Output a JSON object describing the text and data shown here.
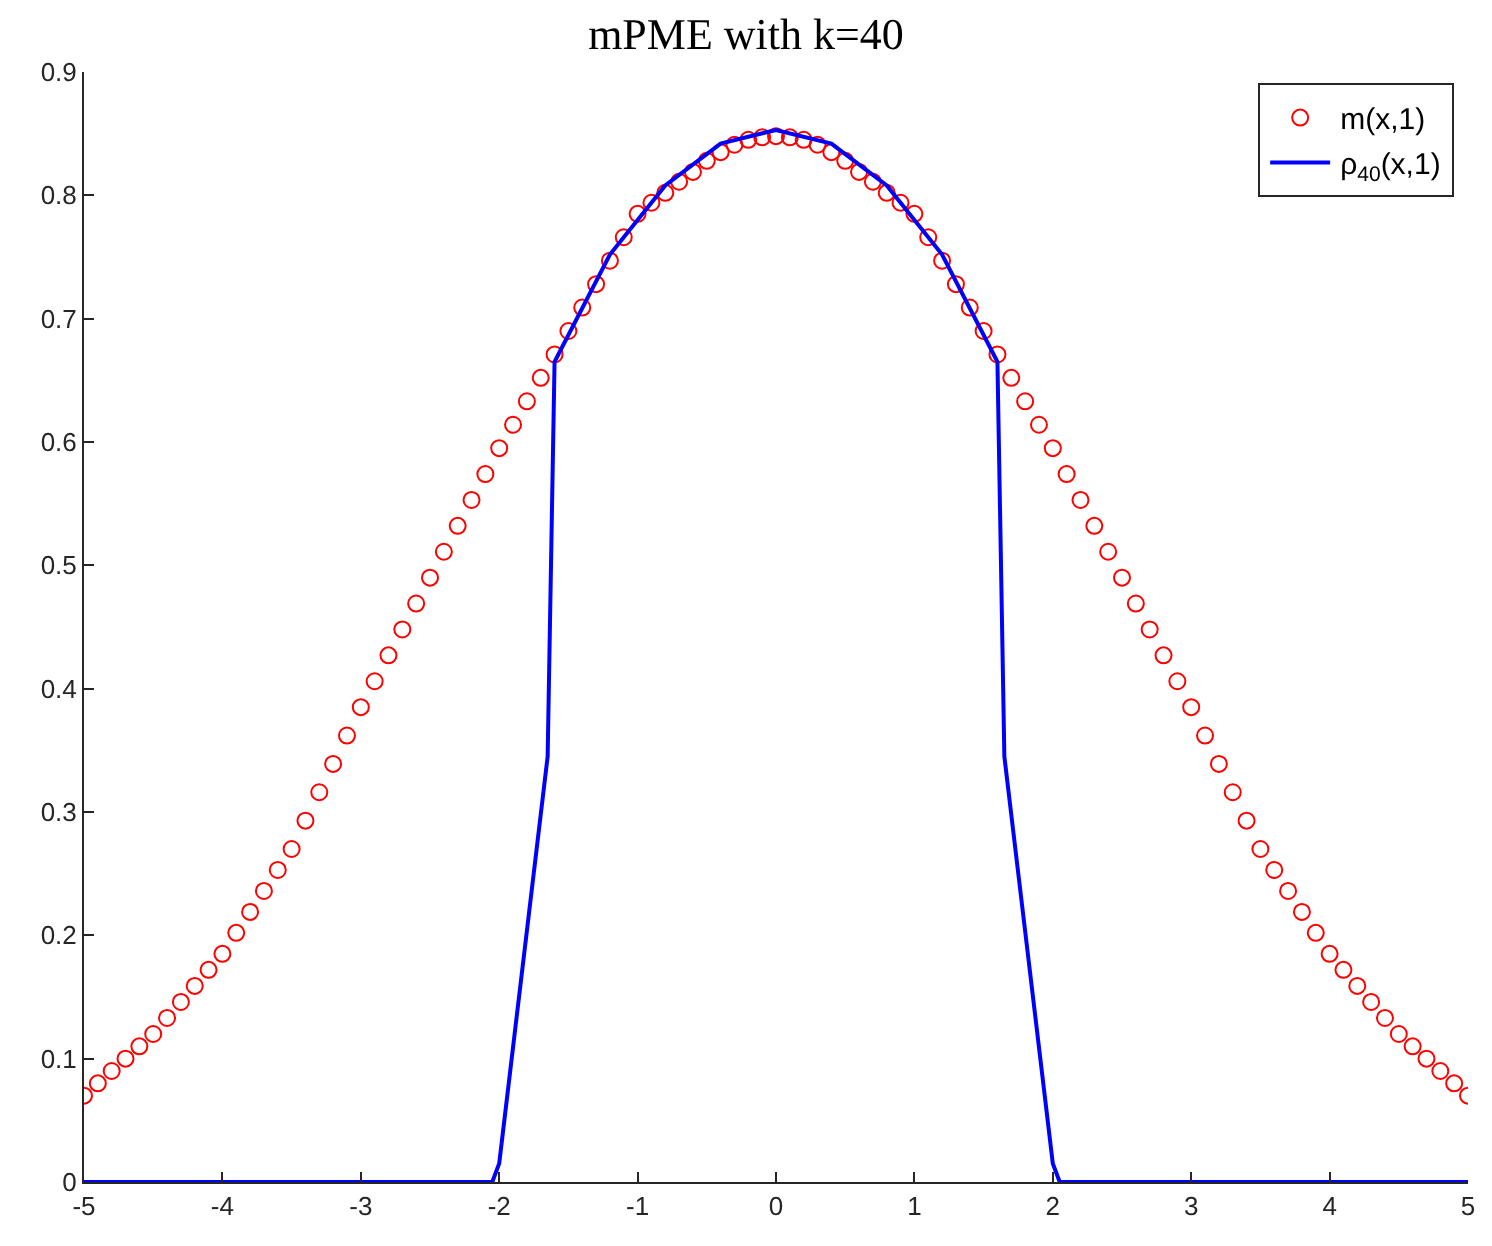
{
  "chart_data": {
    "type": "line",
    "title": "mPME with k=40",
    "xlim": [
      -5,
      5
    ],
    "xticks": [
      -5,
      -4,
      -3,
      -2,
      -1,
      0,
      1,
      2,
      3,
      4,
      5
    ],
    "ylim": [
      0,
      0.9
    ],
    "yticks": [
      0,
      0.1,
      0.2,
      0.3,
      0.4,
      0.5,
      0.6,
      0.7,
      0.8,
      0.9
    ],
    "legend": "top right",
    "series": [
      {
        "name": "m(x,1)",
        "type": "scatter",
        "marker": "circle",
        "color": "#ff0000",
        "x": [
          -5.0,
          -4.9,
          -4.8,
          -4.7,
          -4.6,
          -4.5,
          -4.4,
          -4.3,
          -4.2,
          -4.1,
          -4.0,
          -3.9,
          -3.8,
          -3.7,
          -3.6,
          -3.5,
          -3.4,
          -3.3,
          -3.2,
          -3.1,
          -3.0,
          -2.9,
          -2.8,
          -2.7,
          -2.6,
          -2.5,
          -2.4,
          -2.3,
          -2.2,
          -2.1,
          -2.0,
          -1.9,
          -1.8,
          -1.7,
          -1.6,
          -1.5,
          -1.4,
          -1.3,
          -1.2,
          -1.1,
          -1.0,
          -0.9,
          -0.8,
          -0.7,
          -0.6,
          -0.5,
          -0.4,
          -0.3,
          -0.2,
          -0.1,
          0.0,
          0.1,
          0.2,
          0.3,
          0.4,
          0.5,
          0.6,
          0.7,
          0.8,
          0.9,
          1.0,
          1.1,
          1.2,
          1.3,
          1.4,
          1.5,
          1.6,
          1.7,
          1.8,
          1.9,
          2.0,
          2.1,
          2.2,
          2.3,
          2.4,
          2.5,
          2.6,
          2.7,
          2.8,
          2.9,
          3.0,
          3.1,
          3.2,
          3.3,
          3.4,
          3.5,
          3.6,
          3.7,
          3.8,
          3.9,
          4.0,
          4.1,
          4.2,
          4.3,
          4.4,
          4.5,
          4.6,
          4.7,
          4.8,
          4.9,
          5.0
        ],
        "values": [
          0.07,
          0.08,
          0.09,
          0.1,
          0.11,
          0.12,
          0.133,
          0.146,
          0.159,
          0.172,
          0.185,
          0.202,
          0.219,
          0.236,
          0.253,
          0.27,
          0.293,
          0.316,
          0.339,
          0.362,
          0.385,
          0.406,
          0.427,
          0.448,
          0.469,
          0.49,
          0.511,
          0.532,
          0.553,
          0.574,
          0.595,
          0.614,
          0.633,
          0.652,
          0.671,
          0.69,
          0.709,
          0.728,
          0.747,
          0.766,
          0.785,
          0.794,
          0.802,
          0.811,
          0.819,
          0.828,
          0.835,
          0.841,
          0.845,
          0.847,
          0.848,
          0.847,
          0.845,
          0.841,
          0.835,
          0.828,
          0.819,
          0.811,
          0.802,
          0.794,
          0.785,
          0.766,
          0.747,
          0.728,
          0.709,
          0.69,
          0.671,
          0.652,
          0.633,
          0.614,
          0.595,
          0.574,
          0.553,
          0.532,
          0.511,
          0.49,
          0.469,
          0.448,
          0.427,
          0.406,
          0.385,
          0.362,
          0.339,
          0.316,
          0.293,
          0.27,
          0.253,
          0.236,
          0.219,
          0.202,
          0.185,
          0.172,
          0.159,
          0.146,
          0.133,
          0.12,
          0.11,
          0.1,
          0.09,
          0.08,
          0.07
        ]
      },
      {
        "name": "ρ$_{40}$(x,1)",
        "marker": "none",
        "line_style": "solid",
        "color": "#0000ff",
        "x": [
          -5,
          -2.05,
          -2.0,
          -1.65,
          -1.6,
          -1.2,
          -0.8,
          -0.4,
          0,
          0.4,
          0.8,
          1.2,
          1.6,
          1.65,
          2.0,
          2.05,
          5
        ],
        "values": [
          0,
          0,
          0.015,
          0.345,
          0.665,
          0.752,
          0.808,
          0.842,
          0.853,
          0.842,
          0.808,
          0.752,
          0.665,
          0.345,
          0.015,
          0,
          0
        ]
      }
    ]
  }
}
